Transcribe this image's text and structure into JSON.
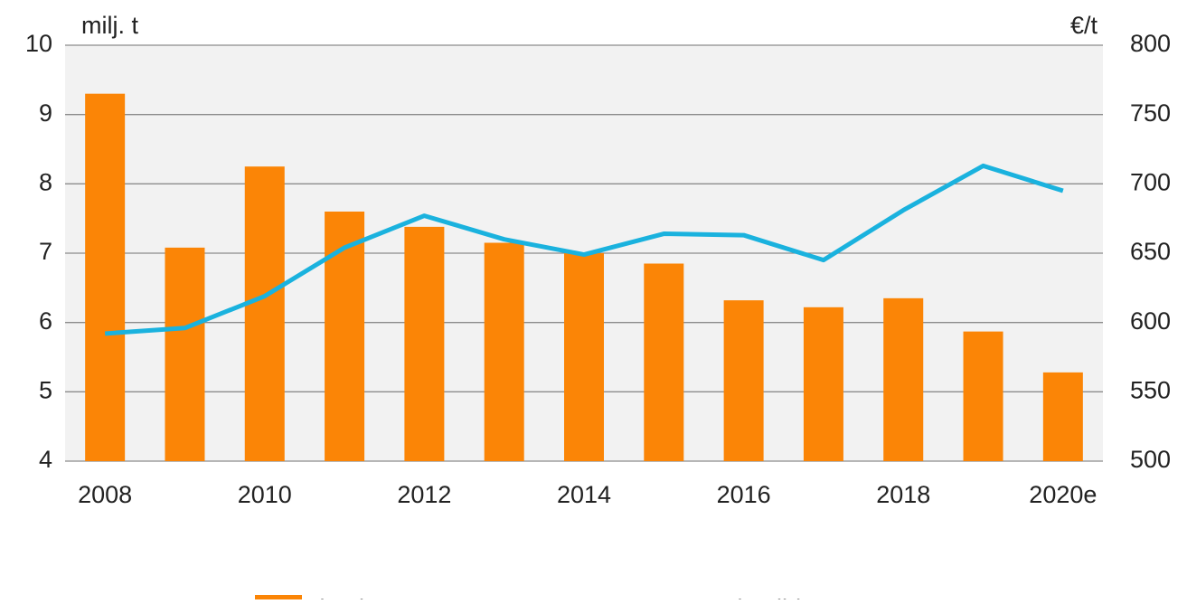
{
  "chart_data": {
    "type": "bar",
    "categories": [
      "2008",
      null,
      "2010",
      null,
      "2012",
      null,
      "2014",
      null,
      "2016",
      null,
      "2018",
      null,
      "2020e"
    ],
    "y_label": "milj. t",
    "y2_label": "€/t",
    "series": [
      {
        "name": "Vientimäärä",
        "type": "bar",
        "color": "#fb8506",
        "values": [
          9.3,
          7.08,
          8.25,
          7.6,
          7.38,
          7.15,
          7.0,
          6.85,
          6.32,
          6.22,
          6.35,
          5.87,
          5.28
        ]
      },
      {
        "name": "Vientihinta",
        "type": "line",
        "axis": "y2",
        "color": "#1ab2de",
        "values": [
          592,
          596,
          619,
          654,
          677,
          660,
          649,
          664,
          663,
          645,
          681,
          713,
          695
        ]
      }
    ],
    "ylim": [
      4,
      10
    ],
    "yticks": [
      4,
      5,
      6,
      7,
      8,
      9,
      10
    ],
    "y2lim": [
      500,
      800
    ],
    "y2ticks": [
      500,
      550,
      600,
      650,
      700,
      750,
      800
    ],
    "grid": true,
    "legend": "bottom"
  }
}
